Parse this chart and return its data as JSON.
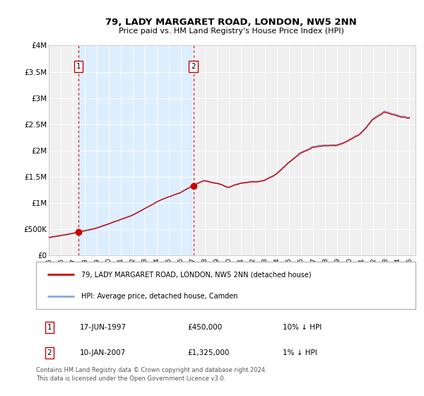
{
  "title": "79, LADY MARGARET ROAD, LONDON, NW5 2NN",
  "subtitle": "Price paid vs. HM Land Registry's House Price Index (HPI)",
  "ylim": [
    0,
    4000000
  ],
  "yticks": [
    0,
    500000,
    1000000,
    1500000,
    2000000,
    2500000,
    3000000,
    3500000,
    4000000
  ],
  "ytick_labels": [
    "£0",
    "£500K",
    "£1M",
    "£1.5M",
    "£2M",
    "£2.5M",
    "£3M",
    "£3.5M",
    "£4M"
  ],
  "xlim_start": 1995.0,
  "xlim_end": 2025.5,
  "sale1_date": 1997.46,
  "sale1_price": 450000,
  "sale2_date": 2007.03,
  "sale2_price": 1325000,
  "red_line_color": "#cc0000",
  "blue_line_color": "#88aadd",
  "shaded_region_color": "#ddeeff",
  "vline_color": "#cc0000",
  "legend_label_red": "79, LADY MARGARET ROAD, LONDON, NW5 2NN (detached house)",
  "legend_label_blue": "HPI: Average price, detached house, Camden",
  "table_row1": [
    "1",
    "17-JUN-1997",
    "£450,000",
    "10% ↓ HPI"
  ],
  "table_row2": [
    "2",
    "10-JAN-2007",
    "£1,325,000",
    "1% ↓ HPI"
  ],
  "footer_text": "Contains HM Land Registry data © Crown copyright and database right 2024.\nThis data is licensed under the Open Government Licence v3.0.",
  "background_color": "#ffffff",
  "plot_bg_color": "#f0f0f0"
}
